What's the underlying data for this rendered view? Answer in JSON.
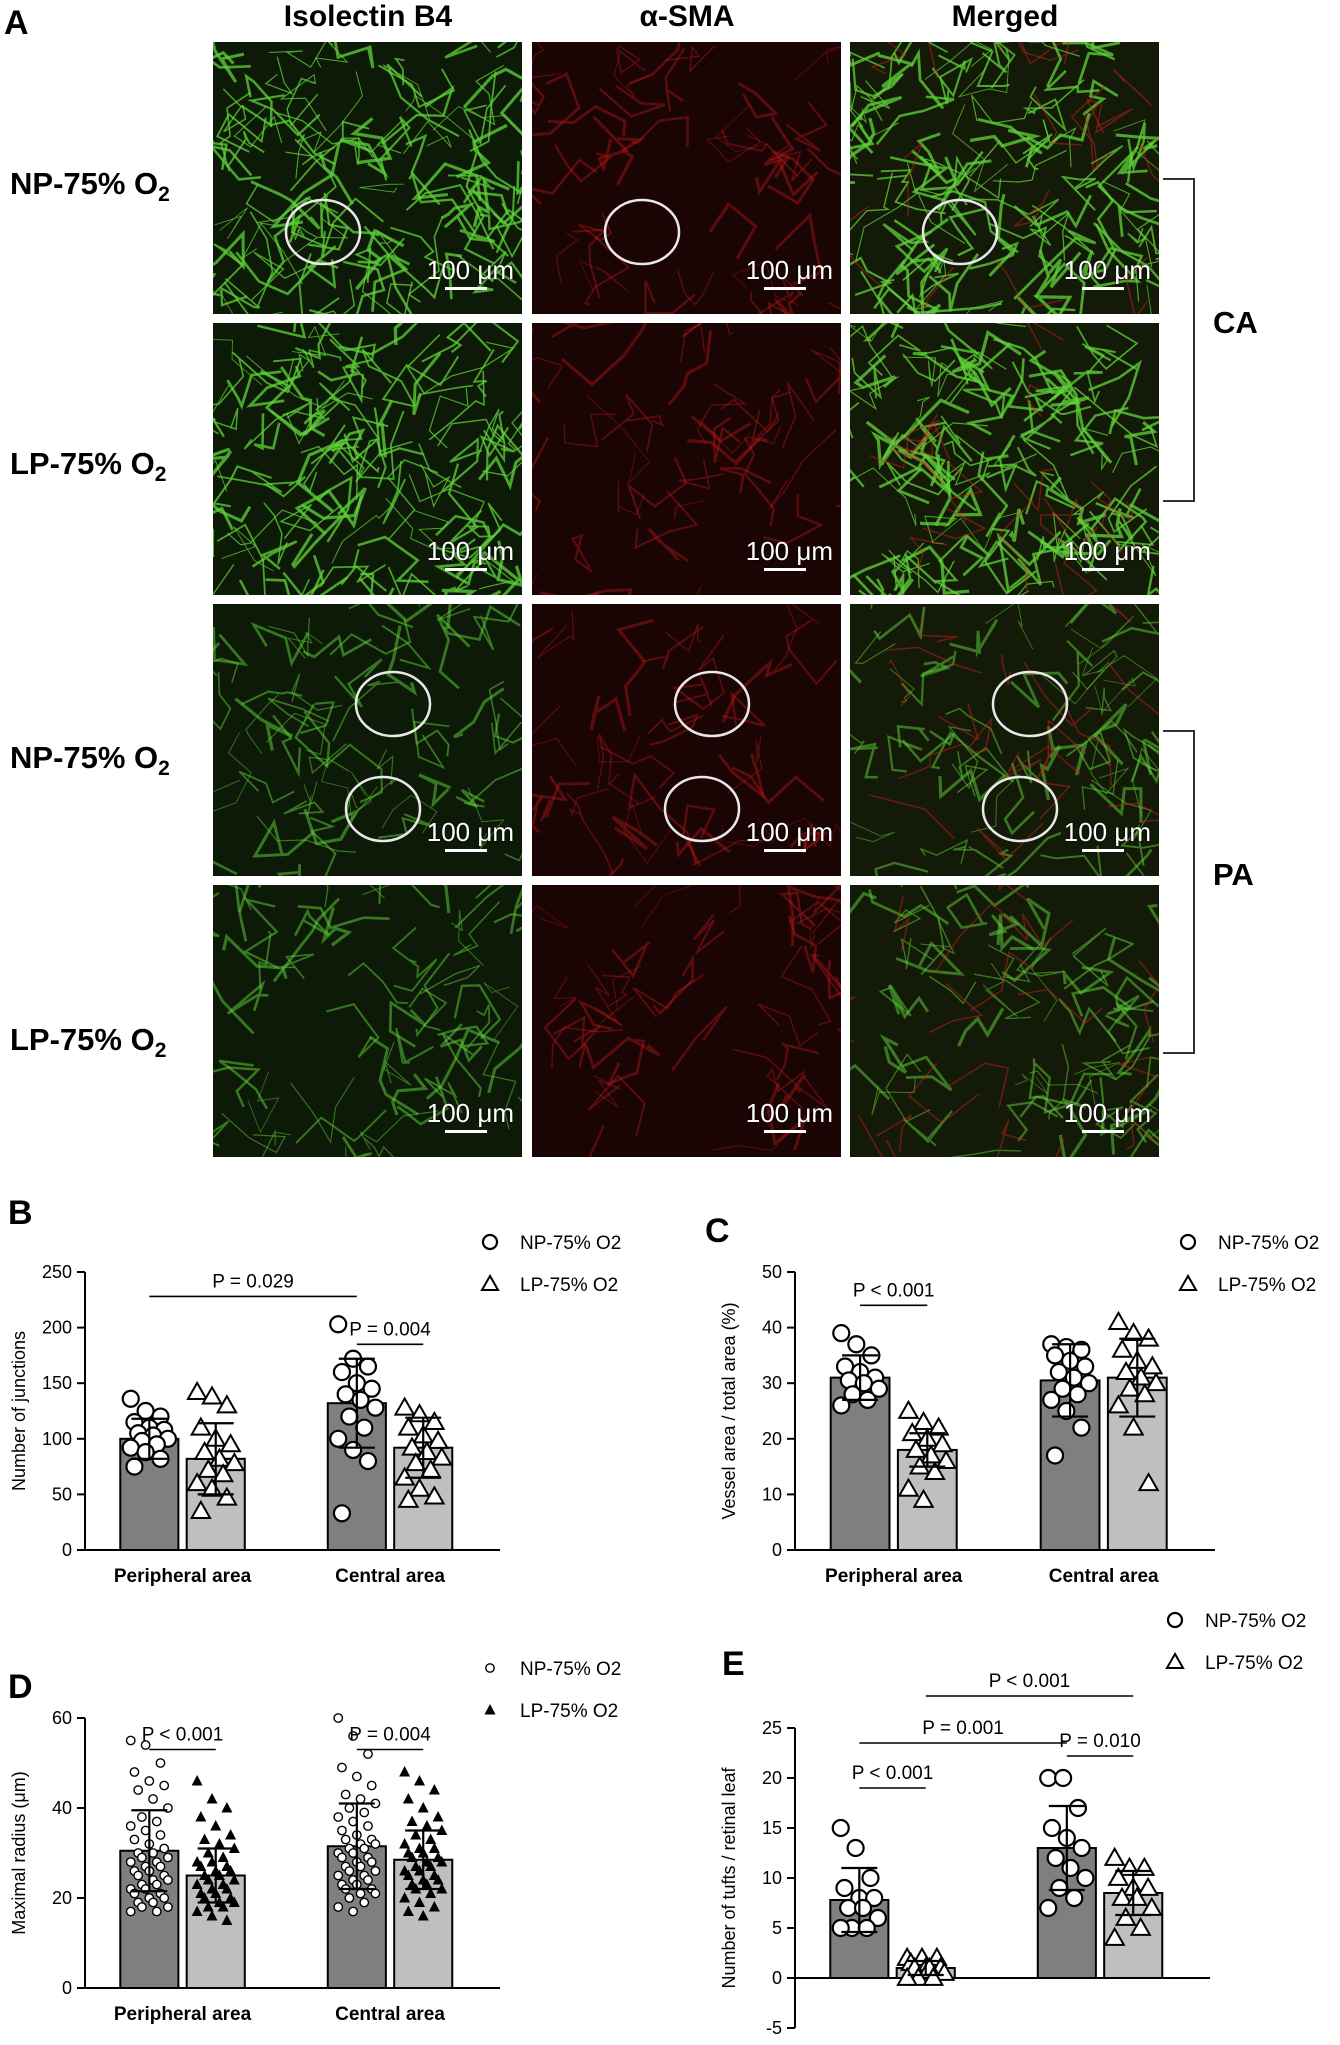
{
  "figure_a": {
    "panel_letter": "A",
    "columns": [
      "Isolectin B4",
      "α-SMA",
      "Merged"
    ],
    "rows": [
      {
        "label": "NP-75% O",
        "subscript": "2"
      },
      {
        "label": "LP-75% O",
        "subscript": "2"
      },
      {
        "label": "NP-75% O",
        "subscript": "2"
      },
      {
        "label": "LP-75% O",
        "subscript": "2"
      }
    ],
    "scale_bar_label": "100 μm",
    "regions": [
      "CA",
      "PA"
    ],
    "colors": {
      "isolectin": "#5fd43a",
      "sma": "#d81e1e",
      "background": "#0d1a08",
      "circle": "#e8e8e8"
    }
  },
  "chart_data": [
    {
      "panel": "B",
      "type": "bar",
      "categories": [
        "Peripheral area",
        "Central area"
      ],
      "ylabel": "Number of junctions",
      "ylim": [
        0,
        250
      ],
      "yticks": [
        0,
        50,
        100,
        150,
        200,
        250
      ],
      "legend": [
        {
          "name": "NP-75% O2",
          "marker": "circle-open"
        },
        {
          "name": "LP-75% O2",
          "marker": "triangle-open"
        }
      ],
      "series": [
        {
          "name": "NP-75% O2",
          "values": [
            100,
            132
          ],
          "sd": [
            18,
            40
          ],
          "color": "#7f7f7f",
          "points": [
            [
              136,
              125,
              120,
              115,
              110,
              108,
              105,
              103,
              100,
              98,
              95,
              92,
              88,
              82,
              75
            ],
            [
              203,
              172,
              165,
              160,
              150,
              145,
              140,
              135,
              128,
              120,
              110,
              100,
              90,
              80,
              33
            ]
          ]
        },
        {
          "name": "LP-75% O2",
          "values": [
            82,
            92
          ],
          "sd": [
            32,
            27
          ],
          "color": "#bfbfbf",
          "points": [
            [
              142,
              138,
              130,
              110,
              100,
              95,
              88,
              82,
              78,
              72,
              68,
              60,
              55,
              47,
              35
            ],
            [
              128,
              122,
              115,
              110,
              103,
              98,
              92,
              88,
              83,
              78,
              72,
              65,
              55,
              48,
              45
            ]
          ]
        }
      ],
      "annotations": [
        {
          "text": "P = 0.029",
          "from": [
            0,
            0
          ],
          "to": [
            1,
            0
          ],
          "y": 228
        },
        {
          "text": "P = 0.004",
          "from": [
            1,
            0
          ],
          "to": [
            1,
            1
          ],
          "y": 185
        }
      ]
    },
    {
      "panel": "C",
      "type": "bar",
      "categories": [
        "Peripheral area",
        "Central area"
      ],
      "ylabel": "Vessel area / total area (%)",
      "ylim": [
        0,
        50
      ],
      "yticks": [
        0,
        10,
        20,
        30,
        40,
        50
      ],
      "legend": [
        {
          "name": "NP-75% O2",
          "marker": "circle-open"
        },
        {
          "name": "LP-75% O2",
          "marker": "triangle-open"
        }
      ],
      "series": [
        {
          "name": "NP-75% O2",
          "values": [
            31,
            30.5
          ],
          "sd": [
            4,
            6.5
          ],
          "color": "#7f7f7f",
          "points": [
            [
              39,
              37,
              35,
              33,
              32,
              31,
              30.5,
              30,
              29,
              28,
              27,
              26
            ],
            [
              37,
              36.5,
              36,
              35,
              34,
              33,
              32,
              31,
              30,
              29,
              28,
              27,
              25,
              22,
              17
            ]
          ]
        },
        {
          "name": "LP-75% O2",
          "values": [
            18,
            31
          ],
          "sd": [
            3,
            7
          ],
          "color": "#bfbfbf",
          "points": [
            [
              25,
              23,
              22,
              21,
              20,
              19,
              18,
              17,
              16,
              15,
              14,
              11,
              9
            ],
            [
              41,
              39,
              38,
              36,
              34,
              33,
              32,
              31,
              30,
              29,
              28,
              26,
              22,
              12
            ]
          ]
        }
      ],
      "annotations": [
        {
          "text": "P < 0.001",
          "from": [
            0,
            0
          ],
          "to": [
            0,
            1
          ],
          "y": 44
        }
      ]
    },
    {
      "panel": "D",
      "type": "bar",
      "categories": [
        "Peripheral area",
        "Central area"
      ],
      "ylabel": "Maximal radius (μm)",
      "ylim": [
        0,
        60
      ],
      "yticks": [
        0,
        20,
        40,
        60
      ],
      "legend": [
        {
          "name": "NP-75% O2",
          "marker": "circle-small"
        },
        {
          "name": "LP-75% O2",
          "marker": "triangle-filled"
        }
      ],
      "series": [
        {
          "name": "NP-75% O2",
          "values": [
            30.5,
            31.5
          ],
          "sd": [
            9,
            9.5
          ],
          "color": "#7f7f7f",
          "points": [
            [
              55,
              54,
              50,
              48,
              46,
              45,
              44,
              42,
              40,
              38,
              37,
              36,
              35,
              34,
              33,
              32,
              31,
              30,
              30,
              29,
              29,
              28,
              28,
              27,
              27,
              26,
              26,
              25,
              25,
              24,
              24,
              23,
              23,
              22,
              22,
              21,
              21,
              20,
              20,
              19,
              19,
              18,
              18,
              17,
              17
            ],
            [
              60,
              56,
              52,
              49,
              47,
              45,
              43,
              42,
              41,
              40,
              39,
              38,
              37,
              36,
              35,
              34,
              33,
              33,
              32,
              32,
              31,
              31,
              30,
              30,
              29,
              29,
              28,
              28,
              27,
              27,
              26,
              26,
              25,
              25,
              24,
              24,
              23,
              23,
              22,
              22,
              21,
              21,
              20,
              19,
              18,
              17
            ]
          ]
        },
        {
          "name": "LP-75% O2",
          "values": [
            25,
            28.5
          ],
          "sd": [
            6,
            6.5
          ],
          "color": "#bfbfbf",
          "points": [
            [
              46,
              42,
              40,
              38,
              36,
              34,
              33,
              32,
              31,
              30,
              29,
              28,
              28,
              27,
              27,
              26,
              26,
              25,
              25,
              24,
              24,
              23,
              23,
              22,
              22,
              21,
              21,
              20,
              20,
              19,
              19,
              18,
              18,
              17,
              16,
              15
            ],
            [
              48,
              46,
              44,
              42,
              40,
              38,
              37,
              36,
              35,
              34,
              33,
              32,
              31,
              31,
              30,
              30,
              29,
              29,
              28,
              28,
              27,
              27,
              26,
              26,
              25,
              25,
              24,
              24,
              23,
              23,
              22,
              22,
              21,
              20,
              19,
              18,
              17,
              16
            ]
          ]
        }
      ],
      "annotations": [
        {
          "text": "P < 0.001",
          "from": [
            0,
            0
          ],
          "to": [
            0,
            1
          ],
          "y": 53
        },
        {
          "text": "P = 0.004",
          "from": [
            1,
            0
          ],
          "to": [
            1,
            1
          ],
          "y": 53
        }
      ]
    },
    {
      "panel": "E",
      "type": "bar",
      "categories": [
        "Peripheral area",
        "Central area"
      ],
      "ylabel": "Number of tufts / retinal leaf",
      "ylim": [
        -5,
        25
      ],
      "yticks": [
        -5,
        0,
        5,
        10,
        15,
        20,
        25
      ],
      "legend": [
        {
          "name": "NP-75% O2",
          "marker": "circle-open"
        },
        {
          "name": "LP-75% O2",
          "marker": "triangle-open"
        }
      ],
      "series": [
        {
          "name": "NP-75% O2",
          "values": [
            7.8,
            13
          ],
          "sd": [
            3.2,
            4.2
          ],
          "color": "#7f7f7f",
          "points": [
            [
              15,
              13,
              10,
              9,
              8,
              8,
              7,
              7,
              6,
              5,
              5,
              5
            ],
            [
              20,
              20,
              17,
              15,
              14,
              13,
              12,
              11,
              10,
              9,
              8,
              7
            ]
          ]
        },
        {
          "name": "LP-75% O2",
          "values": [
            1,
            8.5
          ],
          "sd": [
            0.7,
            2.2
          ],
          "color": "#bfbfbf",
          "points": [
            [
              2,
              2,
              2,
              1.5,
              1,
              1,
              1,
              1,
              0.5,
              0,
              0,
              0
            ],
            [
              12,
              11,
              11,
              10,
              9,
              9,
              8,
              8,
              7,
              6,
              5,
              4
            ]
          ]
        }
      ],
      "annotations": [
        {
          "text": "P < 0.001",
          "from": [
            0,
            0
          ],
          "to": [
            0,
            1
          ],
          "y": 19
        },
        {
          "text": "P = 0.001",
          "from": [
            0,
            0
          ],
          "to": [
            1,
            0
          ],
          "y": 23.5
        },
        {
          "text": "P < 0.001",
          "from": [
            0,
            1
          ],
          "to": [
            1,
            1
          ],
          "y": 28.2
        },
        {
          "text": "P = 0.010",
          "from": [
            1,
            0
          ],
          "to": [
            1,
            1
          ],
          "y": 22.2
        }
      ]
    }
  ]
}
